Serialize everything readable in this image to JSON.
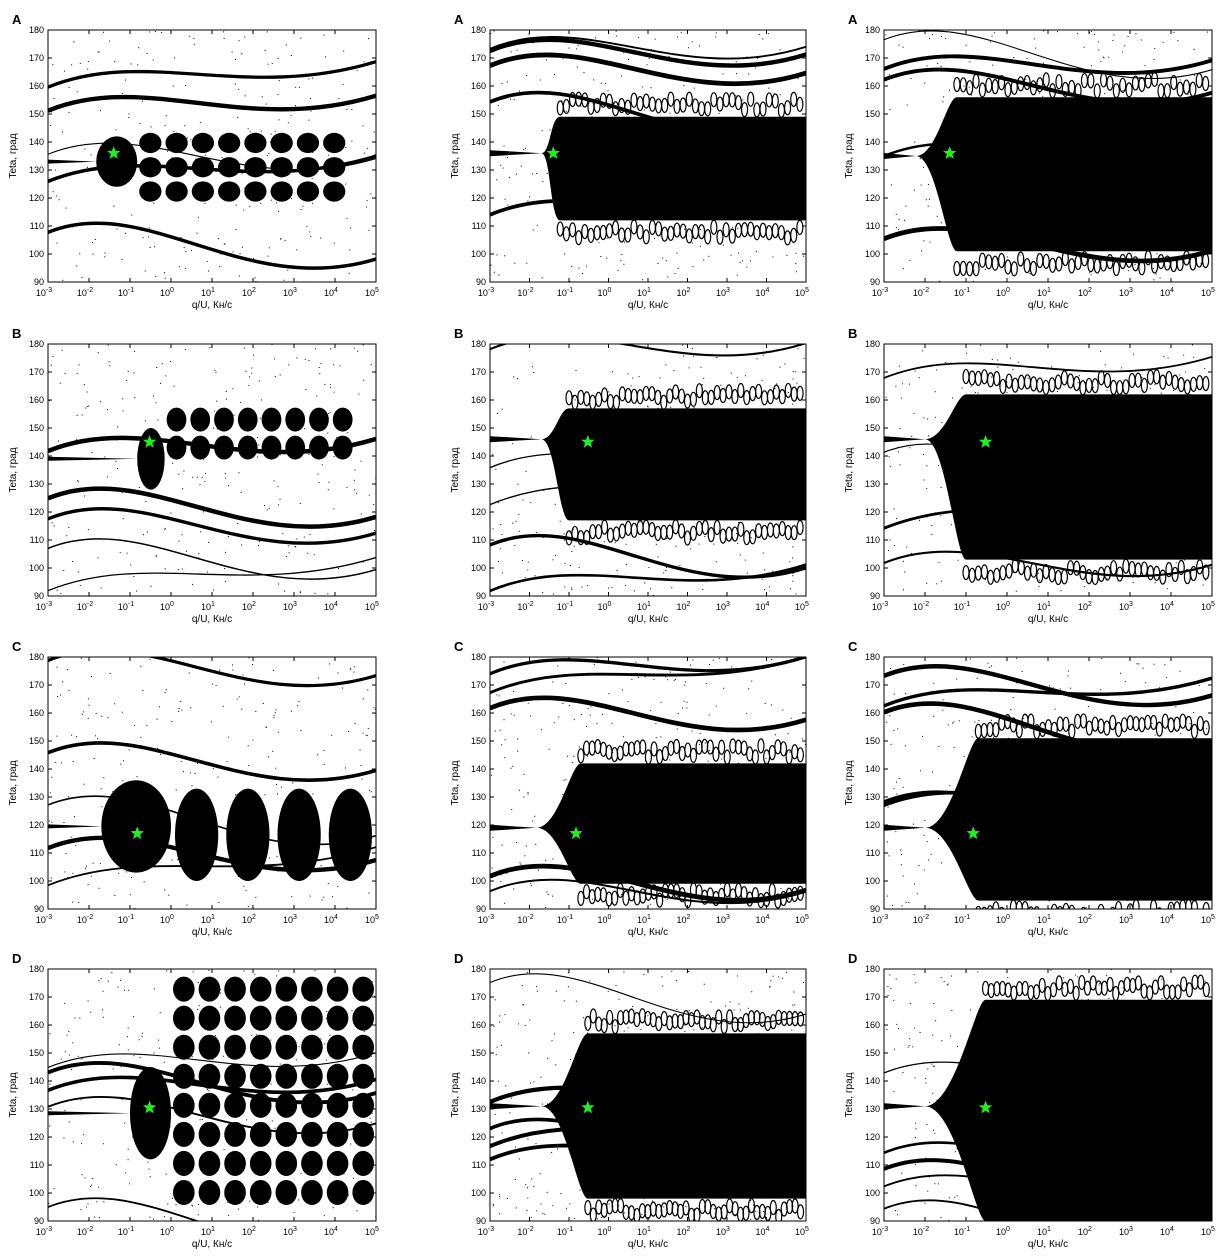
{
  "figure": {
    "panels": [
      {
        "row": 0,
        "col": 0,
        "label": "A"
      },
      {
        "row": 0,
        "col": 1,
        "label": "A"
      },
      {
        "row": 0,
        "col": 2,
        "label": "A"
      },
      {
        "row": 1,
        "col": 0,
        "label": "B"
      },
      {
        "row": 1,
        "col": 1,
        "label": "B"
      },
      {
        "row": 1,
        "col": 2,
        "label": "B"
      },
      {
        "row": 2,
        "col": 0,
        "label": "C"
      },
      {
        "row": 2,
        "col": 1,
        "label": "C"
      },
      {
        "row": 2,
        "col": 2,
        "label": "C"
      },
      {
        "row": 3,
        "col": 0,
        "label": "D"
      },
      {
        "row": 3,
        "col": 1,
        "label": "D"
      },
      {
        "row": 3,
        "col": 2,
        "label": "D"
      }
    ]
  },
  "chart_data": {
    "type": "heatmap",
    "xlabel": "q/U, Кн/с",
    "ylabel": "Teta, град",
    "x_scale": "log",
    "xlim": [
      0.001,
      100000
    ],
    "ylim": [
      90,
      180
    ],
    "x_ticks": [
      "-3",
      "-2",
      "-1",
      "0",
      "1",
      "2",
      "3",
      "4",
      "5"
    ],
    "x_tick_base": "10",
    "y_ticks": [
      90,
      100,
      110,
      120,
      130,
      140,
      150,
      160,
      170,
      180
    ],
    "colors": {
      "filled": "#000000",
      "empty": "#ffffff",
      "marker": "#22ee22"
    },
    "markers": [
      {
        "row": "A",
        "q": 0.04,
        "teta": 136
      },
      {
        "row": "B",
        "q": 0.3,
        "teta": 145
      },
      {
        "row": "C",
        "q": 0.15,
        "teta": 117
      },
      {
        "row": "D",
        "q": 0.3,
        "teta": 130.5
      }
    ],
    "regions": [
      {
        "row": 0,
        "col": 0,
        "type": "scalloped",
        "core": [
          0.015,
          0.15,
          124,
          142
        ],
        "q0": 0.15,
        "q1": 20000,
        "tmin": 118,
        "tmax": 144
      },
      {
        "row": 0,
        "col": 1,
        "type": "band",
        "tipq": 0.02,
        "tipt": 136,
        "q1": 0.06,
        "tlow": 112,
        "thigh": 149
      },
      {
        "row": 0,
        "col": 2,
        "type": "band",
        "tipq": 0.006,
        "tipt": 135,
        "q1": 0.06,
        "tlow": 101,
        "thigh": 156
      },
      {
        "row": 1,
        "col": 0,
        "type": "scalloped",
        "core": [
          0.15,
          0.7,
          128,
          150
        ],
        "q0": 0.7,
        "q1": 30000,
        "tmin": 138,
        "tmax": 158
      },
      {
        "row": 1,
        "col": 1,
        "type": "band",
        "tipq": 0.02,
        "tipt": 146,
        "q1": 0.1,
        "tlow": 117,
        "thigh": 157
      },
      {
        "row": 1,
        "col": 2,
        "type": "band",
        "tipq": 0.01,
        "tipt": 146,
        "q1": 0.1,
        "tlow": 103,
        "thigh": 162
      },
      {
        "row": 2,
        "col": 0,
        "type": "blobs",
        "core": [
          0.02,
          1,
          103,
          136
        ],
        "q0": 1,
        "q1": 100000,
        "tmin": 100,
        "tmax": 133
      },
      {
        "row": 2,
        "col": 1,
        "type": "band",
        "tipq": 0.015,
        "tipt": 119,
        "q1": 0.2,
        "tlow": 99,
        "thigh": 142
      },
      {
        "row": 2,
        "col": 2,
        "type": "band",
        "tipq": 0.01,
        "tipt": 119,
        "q1": 0.2,
        "tlow": 93,
        "thigh": 151
      },
      {
        "row": 3,
        "col": 0,
        "type": "scalloped",
        "core": [
          0.1,
          1,
          112,
          145
        ],
        "q0": 1,
        "q1": 100000,
        "tmin": 95,
        "tmax": 178
      },
      {
        "row": 3,
        "col": 1,
        "type": "band",
        "tipq": 0.02,
        "tipt": 131,
        "q1": 0.3,
        "tlow": 98,
        "thigh": 157
      },
      {
        "row": 3,
        "col": 2,
        "type": "band",
        "tipq": 0.01,
        "tipt": 131,
        "q1": 0.3,
        "tlow": 90,
        "thigh": 169
      }
    ]
  }
}
